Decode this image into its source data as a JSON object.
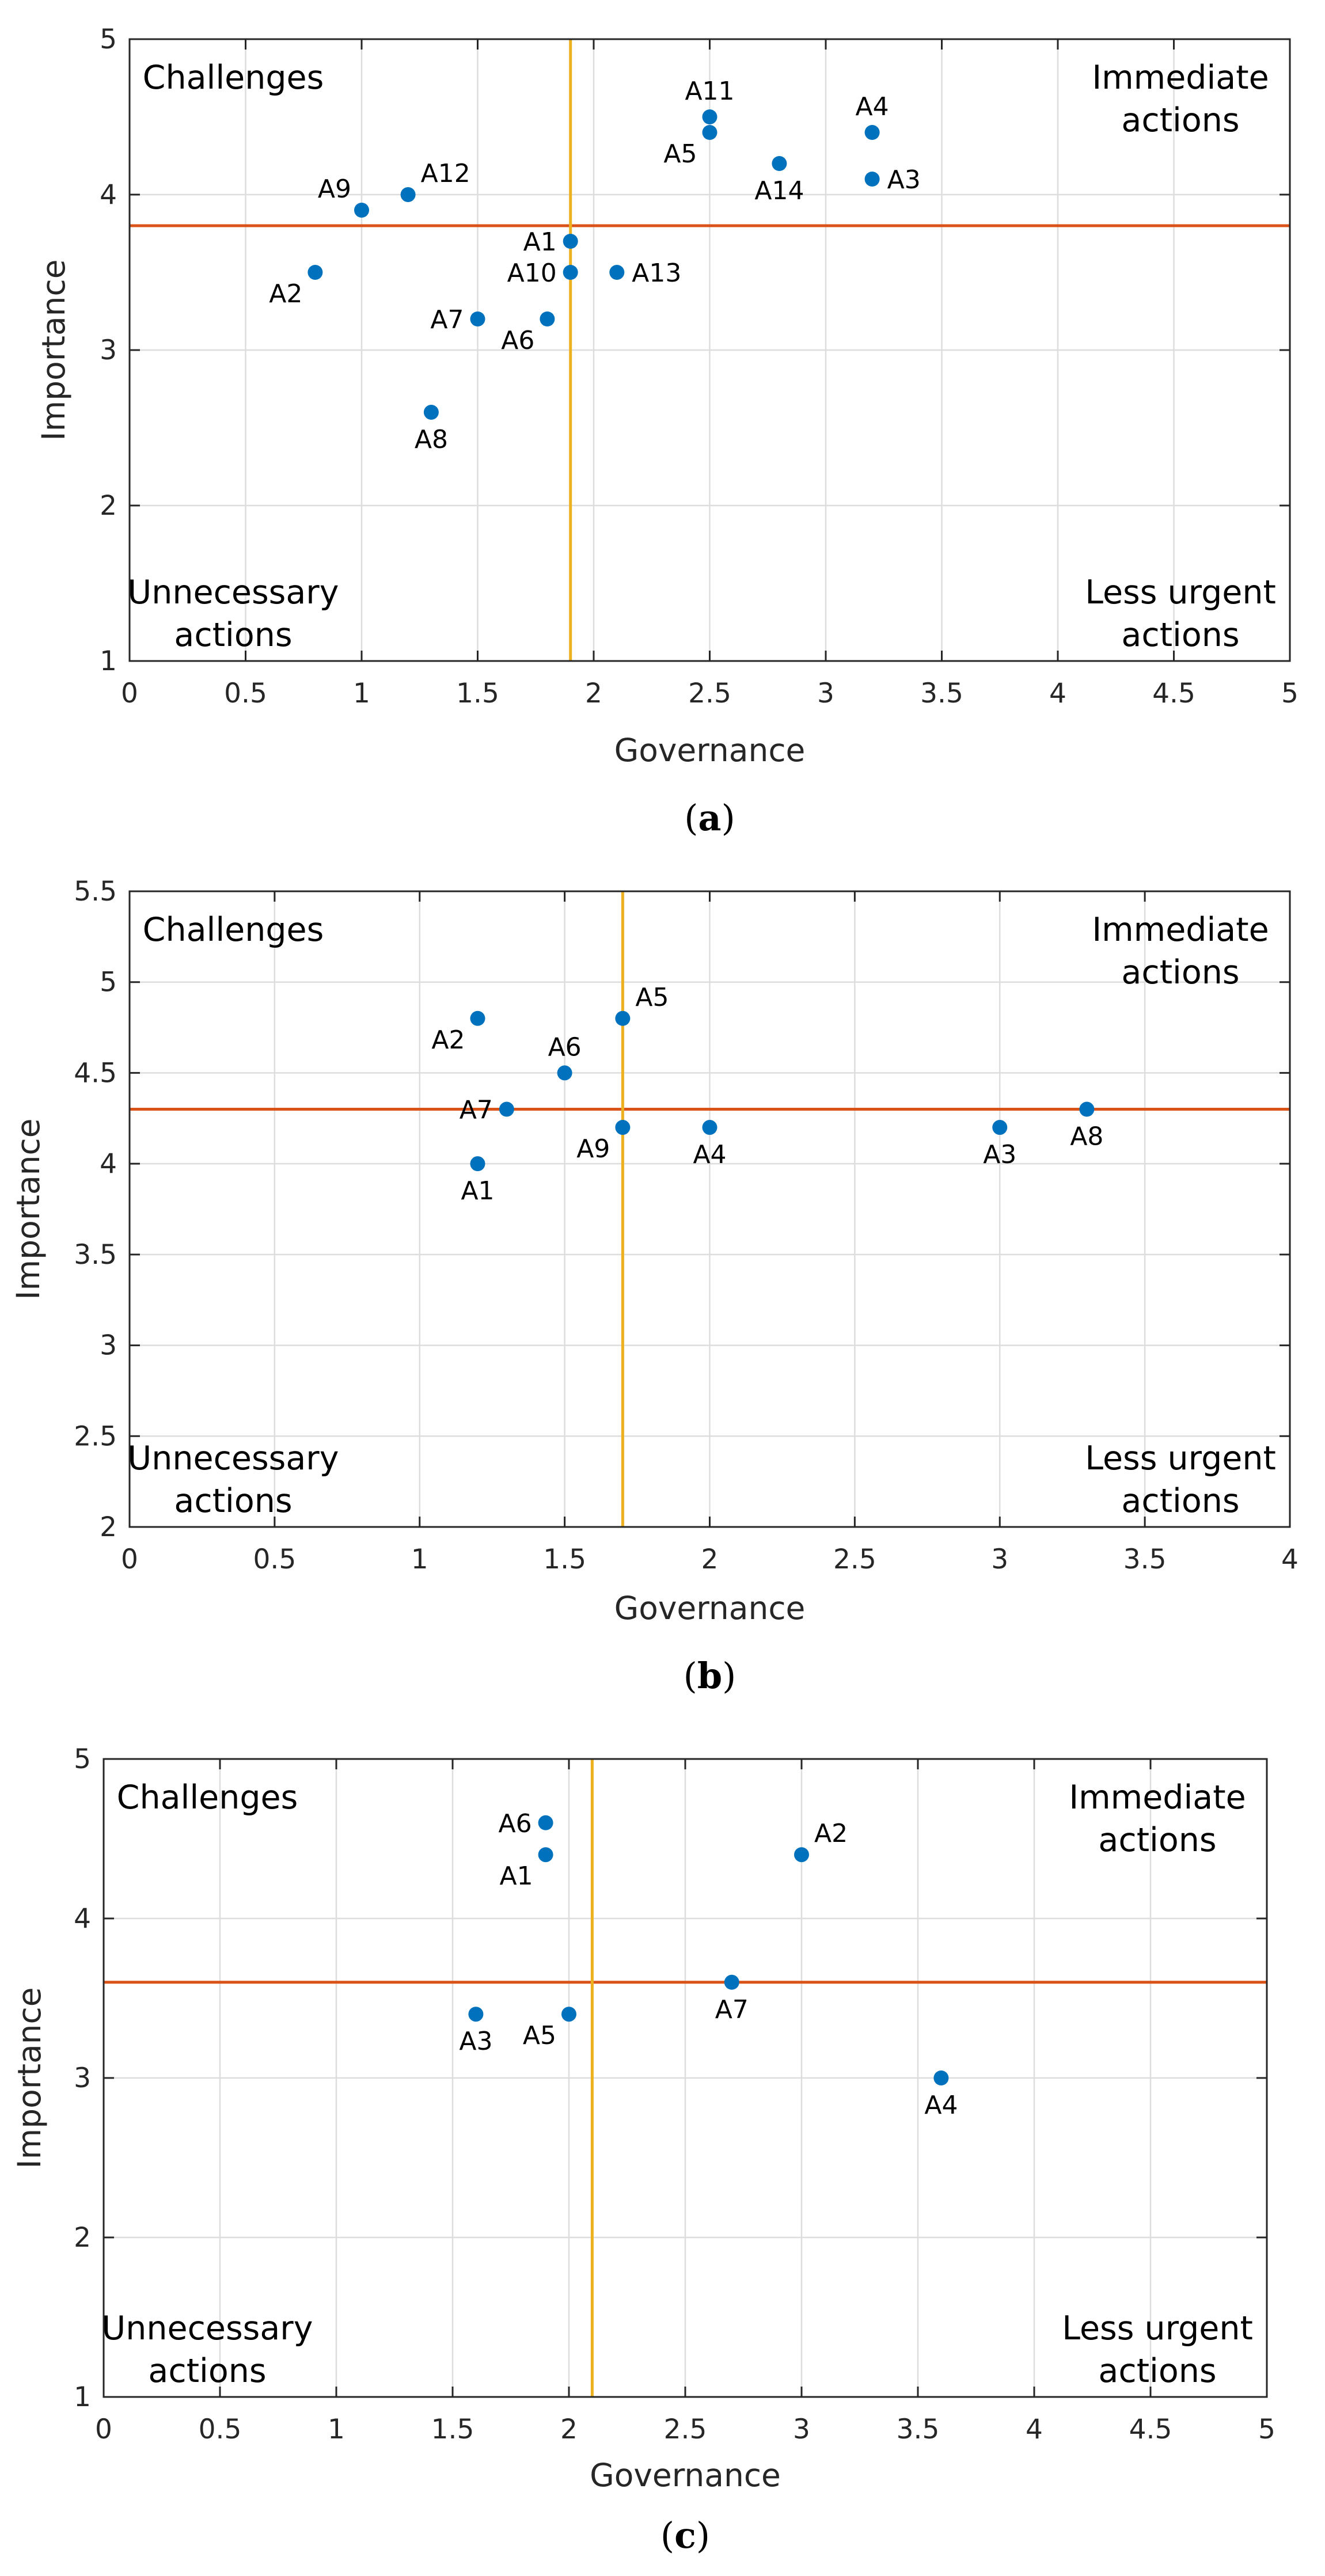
{
  "colors": {
    "point": "#0072BD",
    "horizontal_threshold": "#D95319",
    "vertical_threshold": "#EDB120",
    "grid": "#DDDDDD",
    "axis": "#262626"
  },
  "chart_data": [
    {
      "type": "scatter",
      "caption": {
        "open": "(",
        "letter": "a",
        "close": ")"
      },
      "xlabel": "Governance",
      "ylabel": "Importance",
      "xlim": [
        0,
        5
      ],
      "ylim": [
        1,
        5
      ],
      "xticks": [
        0,
        0.5,
        1,
        1.5,
        2,
        2.5,
        3,
        3.5,
        4,
        4.5,
        5
      ],
      "xtick_labels": [
        "0",
        "0.5",
        "1",
        "1.5",
        "2",
        "2.5",
        "3",
        "3.5",
        "4",
        "4.5",
        "5"
      ],
      "yticks": [
        1,
        2,
        3,
        4,
        5
      ],
      "ytick_labels": [
        "1",
        "2",
        "3",
        "4",
        "5"
      ],
      "threshold_x": 1.9,
      "threshold_y": 3.8,
      "quadrants": {
        "top_left": [
          "Challenges"
        ],
        "top_right": [
          "Immediate",
          "actions"
        ],
        "bottom_left": [
          "Unnecessary",
          "actions"
        ],
        "bottom_right": [
          "Less urgent",
          "actions"
        ]
      },
      "points": [
        {
          "label": "A1",
          "x": 1.9,
          "y": 3.7,
          "pos": "w"
        },
        {
          "label": "A2",
          "x": 0.8,
          "y": 3.5,
          "pos": "sw"
        },
        {
          "label": "A3",
          "x": 3.2,
          "y": 4.1,
          "pos": "e"
        },
        {
          "label": "A4",
          "x": 3.2,
          "y": 4.4,
          "pos": "n"
        },
        {
          "label": "A5",
          "x": 2.5,
          "y": 4.4,
          "pos": "sw"
        },
        {
          "label": "A6",
          "x": 1.8,
          "y": 3.2,
          "pos": "sw"
        },
        {
          "label": "A7",
          "x": 1.5,
          "y": 3.2,
          "pos": "w"
        },
        {
          "label": "A8",
          "x": 1.3,
          "y": 2.6,
          "pos": "s"
        },
        {
          "label": "A9",
          "x": 1.0,
          "y": 3.9,
          "pos": "nw"
        },
        {
          "label": "A10",
          "x": 1.9,
          "y": 3.5,
          "pos": "w"
        },
        {
          "label": "A11",
          "x": 2.5,
          "y": 4.5,
          "pos": "n"
        },
        {
          "label": "A12",
          "x": 1.2,
          "y": 4.0,
          "pos": "ne"
        },
        {
          "label": "A13",
          "x": 2.1,
          "y": 3.5,
          "pos": "e"
        },
        {
          "label": "A14",
          "x": 2.8,
          "y": 4.2,
          "pos": "s"
        }
      ]
    },
    {
      "type": "scatter",
      "caption": {
        "open": "(",
        "letter": "b",
        "close": ")"
      },
      "xlabel": "Governance",
      "ylabel": "Importance",
      "xlim": [
        0,
        4
      ],
      "ylim": [
        2,
        5.5
      ],
      "xticks": [
        0,
        0.5,
        1,
        1.5,
        2,
        2.5,
        3,
        3.5,
        4
      ],
      "xtick_labels": [
        "0",
        "0.5",
        "1",
        "1.5",
        "2",
        "2.5",
        "3",
        "3.5",
        "4"
      ],
      "yticks": [
        2,
        2.5,
        3,
        3.5,
        4,
        4.5,
        5,
        5.5
      ],
      "ytick_labels": [
        "2",
        "2.5",
        "3",
        "3.5",
        "4",
        "4.5",
        "5",
        "5.5"
      ],
      "threshold_x": 1.7,
      "threshold_y": 4.3,
      "quadrants": {
        "top_left": [
          "Challenges"
        ],
        "top_right": [
          "Immediate",
          "actions"
        ],
        "bottom_left": [
          "Unnecessary",
          "actions"
        ],
        "bottom_right": [
          "Less urgent",
          "actions"
        ]
      },
      "points": [
        {
          "label": "A1",
          "x": 1.2,
          "y": 4.0,
          "pos": "s"
        },
        {
          "label": "A2",
          "x": 1.2,
          "y": 4.8,
          "pos": "sw"
        },
        {
          "label": "A3",
          "x": 3.0,
          "y": 4.2,
          "pos": "s"
        },
        {
          "label": "A4",
          "x": 2.0,
          "y": 4.2,
          "pos": "s"
        },
        {
          "label": "A5",
          "x": 1.7,
          "y": 4.8,
          "pos": "ne"
        },
        {
          "label": "A6",
          "x": 1.5,
          "y": 4.5,
          "pos": "n"
        },
        {
          "label": "A7",
          "x": 1.3,
          "y": 4.3,
          "pos": "w"
        },
        {
          "label": "A8",
          "x": 3.3,
          "y": 4.3,
          "pos": "s"
        },
        {
          "label": "A9",
          "x": 1.7,
          "y": 4.2,
          "pos": "sw"
        }
      ]
    },
    {
      "type": "scatter",
      "caption": {
        "open": "(",
        "letter": "c",
        "close": ")"
      },
      "xlabel": "Governance",
      "ylabel": "Importance",
      "xlim": [
        0,
        5
      ],
      "ylim": [
        1,
        5
      ],
      "xticks": [
        0,
        0.5,
        1,
        1.5,
        2,
        2.5,
        3,
        3.5,
        4,
        4.5,
        5
      ],
      "xtick_labels": [
        "0",
        "0.5",
        "1",
        "1.5",
        "2",
        "2.5",
        "3",
        "3.5",
        "4",
        "4.5",
        "5"
      ],
      "yticks": [
        1,
        2,
        3,
        4,
        5
      ],
      "ytick_labels": [
        "1",
        "2",
        "3",
        "4",
        "5"
      ],
      "threshold_x": 2.1,
      "threshold_y": 3.6,
      "quadrants": {
        "top_left": [
          "Challenges"
        ],
        "top_right": [
          "Immediate",
          "actions"
        ],
        "bottom_left": [
          "Unnecessary",
          "actions"
        ],
        "bottom_right": [
          "Less urgent",
          "actions"
        ]
      },
      "points": [
        {
          "label": "A1",
          "x": 1.9,
          "y": 4.4,
          "pos": "sw"
        },
        {
          "label": "A2",
          "x": 3.0,
          "y": 4.4,
          "pos": "ne"
        },
        {
          "label": "A3",
          "x": 1.6,
          "y": 3.4,
          "pos": "s"
        },
        {
          "label": "A4",
          "x": 3.6,
          "y": 3.0,
          "pos": "s"
        },
        {
          "label": "A5",
          "x": 2.0,
          "y": 3.4,
          "pos": "sw"
        },
        {
          "label": "A6",
          "x": 1.9,
          "y": 4.6,
          "pos": "w"
        },
        {
          "label": "A7",
          "x": 2.7,
          "y": 3.6,
          "pos": "s"
        }
      ]
    }
  ]
}
